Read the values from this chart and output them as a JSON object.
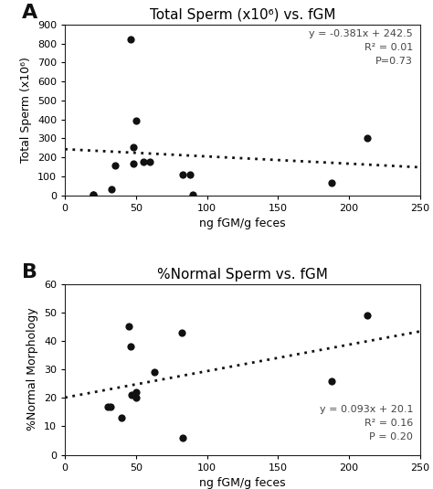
{
  "panel_A": {
    "title": "Total Sperm (x10⁶) vs. fGM",
    "xlabel": "ng fGM/g feces",
    "ylabel": "Total Sperm (x10⁶)",
    "xlim": [
      0,
      250
    ],
    "ylim": [
      0,
      900
    ],
    "xticks": [
      0,
      50,
      100,
      150,
      200,
      250
    ],
    "yticks": [
      0,
      100,
      200,
      300,
      400,
      500,
      600,
      700,
      800,
      900
    ],
    "scatter_x": [
      20,
      20,
      33,
      35,
      46,
      48,
      48,
      50,
      55,
      60,
      83,
      88,
      90,
      188,
      213
    ],
    "scatter_y": [
      5,
      5,
      30,
      155,
      820,
      255,
      165,
      395,
      175,
      175,
      110,
      110,
      5,
      65,
      300
    ],
    "slope": -0.381,
    "intercept": 242.5,
    "eq_text": "y = -0.381x + 242.5",
    "r2_text": "R² = 0.01",
    "p_text": "P=0.73",
    "label": "A"
  },
  "panel_B": {
    "title": "%Normal Sperm vs. fGM",
    "xlabel": "ng fGM/g feces",
    "ylabel": "%Normal Morphology",
    "xlim": [
      0,
      250
    ],
    "ylim": [
      0,
      60
    ],
    "xticks": [
      0,
      50,
      100,
      150,
      200,
      250
    ],
    "yticks": [
      0,
      10,
      20,
      30,
      40,
      50,
      60
    ],
    "scatter_x": [
      30,
      32,
      40,
      45,
      46,
      47,
      50,
      50,
      63,
      82,
      83,
      188,
      213
    ],
    "scatter_y": [
      17,
      17,
      13,
      45,
      38,
      21,
      22,
      20,
      29,
      43,
      6,
      26,
      49
    ],
    "slope": 0.093,
    "intercept": 20.1,
    "eq_text": "y = 0.093x + 20.1",
    "r2_text": "R² = 0.16",
    "p_text": "P = 0.20",
    "label": "B"
  },
  "dot_color": "#111111",
  "dot_size": 35,
  "line_color": "#111111",
  "annotation_fontsize": 8,
  "annotation_color": "#444444",
  "bg_color": "#ffffff",
  "title_fontsize": 11,
  "label_fontsize": 9,
  "tick_fontsize": 8,
  "panel_label_fontsize": 16
}
